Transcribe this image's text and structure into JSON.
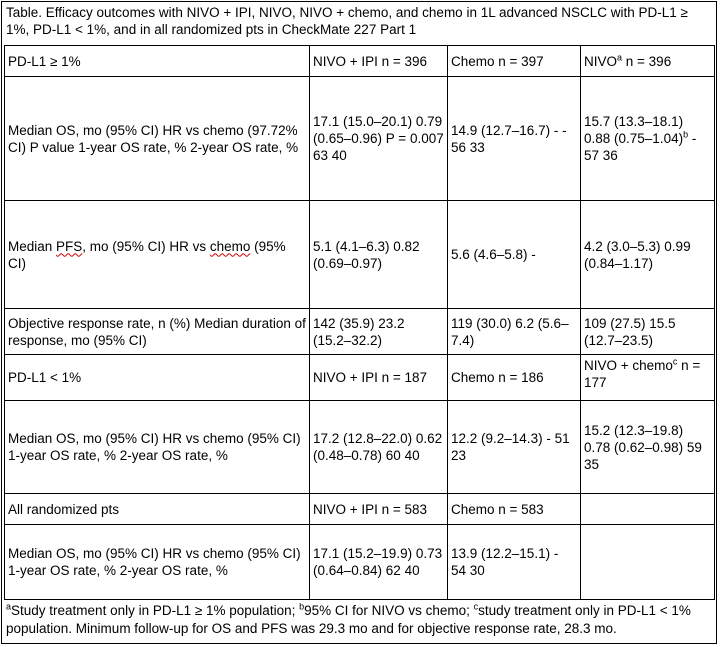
{
  "caption": "Table. Efficacy outcomes with NIVO + IPI, NIVO, NIVO + chemo, and chemo in 1L advanced NSCLC with PD-L1 ≥ 1%, PD-L1 < 1%, and in all randomized pts in CheckMate 227 Part 1",
  "rows": {
    "r1": {
      "c1": "PD-L1 ≥ 1%",
      "c2": "NIVO + IPI n = 396",
      "c3": "Chemo n = 397",
      "c4a": "NIVO",
      "c4sup": "a",
      "c4b": " n = 396"
    },
    "r2": {
      "c1": "Median OS, mo (95% CI) HR vs chemo (97.72% CI) P value 1-year OS rate, % 2-year OS rate, %",
      "c2": "17.1 (15.0–20.1) 0.79 (0.65–0.96) P = 0.007 63 40",
      "c3": "14.9 (12.7–16.7) - - 56 33",
      "c4a": "15.7 (13.3–18.1) 0.88 (0.75–1.04)",
      "c4sup": "b",
      "c4b": " - 57 36"
    },
    "r3": {
      "c1_pre": "Median ",
      "c1_pfs": "PFS",
      "c1_mid": ", mo (95% CI) HR vs ",
      "c1_chemo": "chemo",
      "c1_post": " (95% CI)",
      "c2": "5.1 (4.1–6.3) 0.82 (0.69–0.97)",
      "c3": "5.6 (4.6–5.8) -",
      "c4": "4.2 (3.0–5.3) 0.99 (0.84–1.17)"
    },
    "r4": {
      "c1": "Objective response rate, n (%) Median duration of response, mo (95% CI)",
      "c2": "142 (35.9) 23.2 (15.2–32.2)",
      "c3": "119 (30.0) 6.2 (5.6–7.4)",
      "c4": "109 (27.5) 15.5 (12.7–23.5)"
    },
    "r5": {
      "c1": "PD-L1 < 1%",
      "c2": "NIVO + IPI n = 187",
      "c3": "Chemo n = 186",
      "c4a": "NIVO + chemo",
      "c4sup": "c",
      "c4b": " n = 177"
    },
    "r6": {
      "c1": "Median OS, mo (95% CI) HR vs chemo (95% CI) 1-year OS rate, % 2-year OS rate, %",
      "c2": "17.2 (12.8–22.0) 0.62 (0.48–0.78) 60 40",
      "c3": "12.2 (9.2–14.3) - 51 23",
      "c4": "15.2 (12.3–19.8) 0.78 (0.62–0.98) 59 35"
    },
    "r7": {
      "c1": "All randomized pts",
      "c2": "NIVO + IPI n = 583",
      "c3": "Chemo n = 583",
      "c4": ""
    },
    "r8": {
      "c1": "Median OS, mo (95% CI) HR vs chemo (95% CI) 1-year OS rate, % 2-year OS rate, %",
      "c2": "17.1 (15.2–19.9) 0.73 (0.64–0.84) 62 40",
      "c3": "13.9 (12.2–15.1) - 54 30",
      "c4": ""
    }
  },
  "footnote": {
    "a_sup": "a",
    "a_text": "Study treatment only in PD-L1 ≥ 1% population; ",
    "b_sup": "b",
    "b_text": "95% CI for NIVO vs chemo; ",
    "c_sup": "c",
    "c_text": "study treatment only in PD-L1 < 1% population. Minimum follow-up for OS and PFS was 29.3 mo and for objective response rate, 28.3 mo."
  }
}
